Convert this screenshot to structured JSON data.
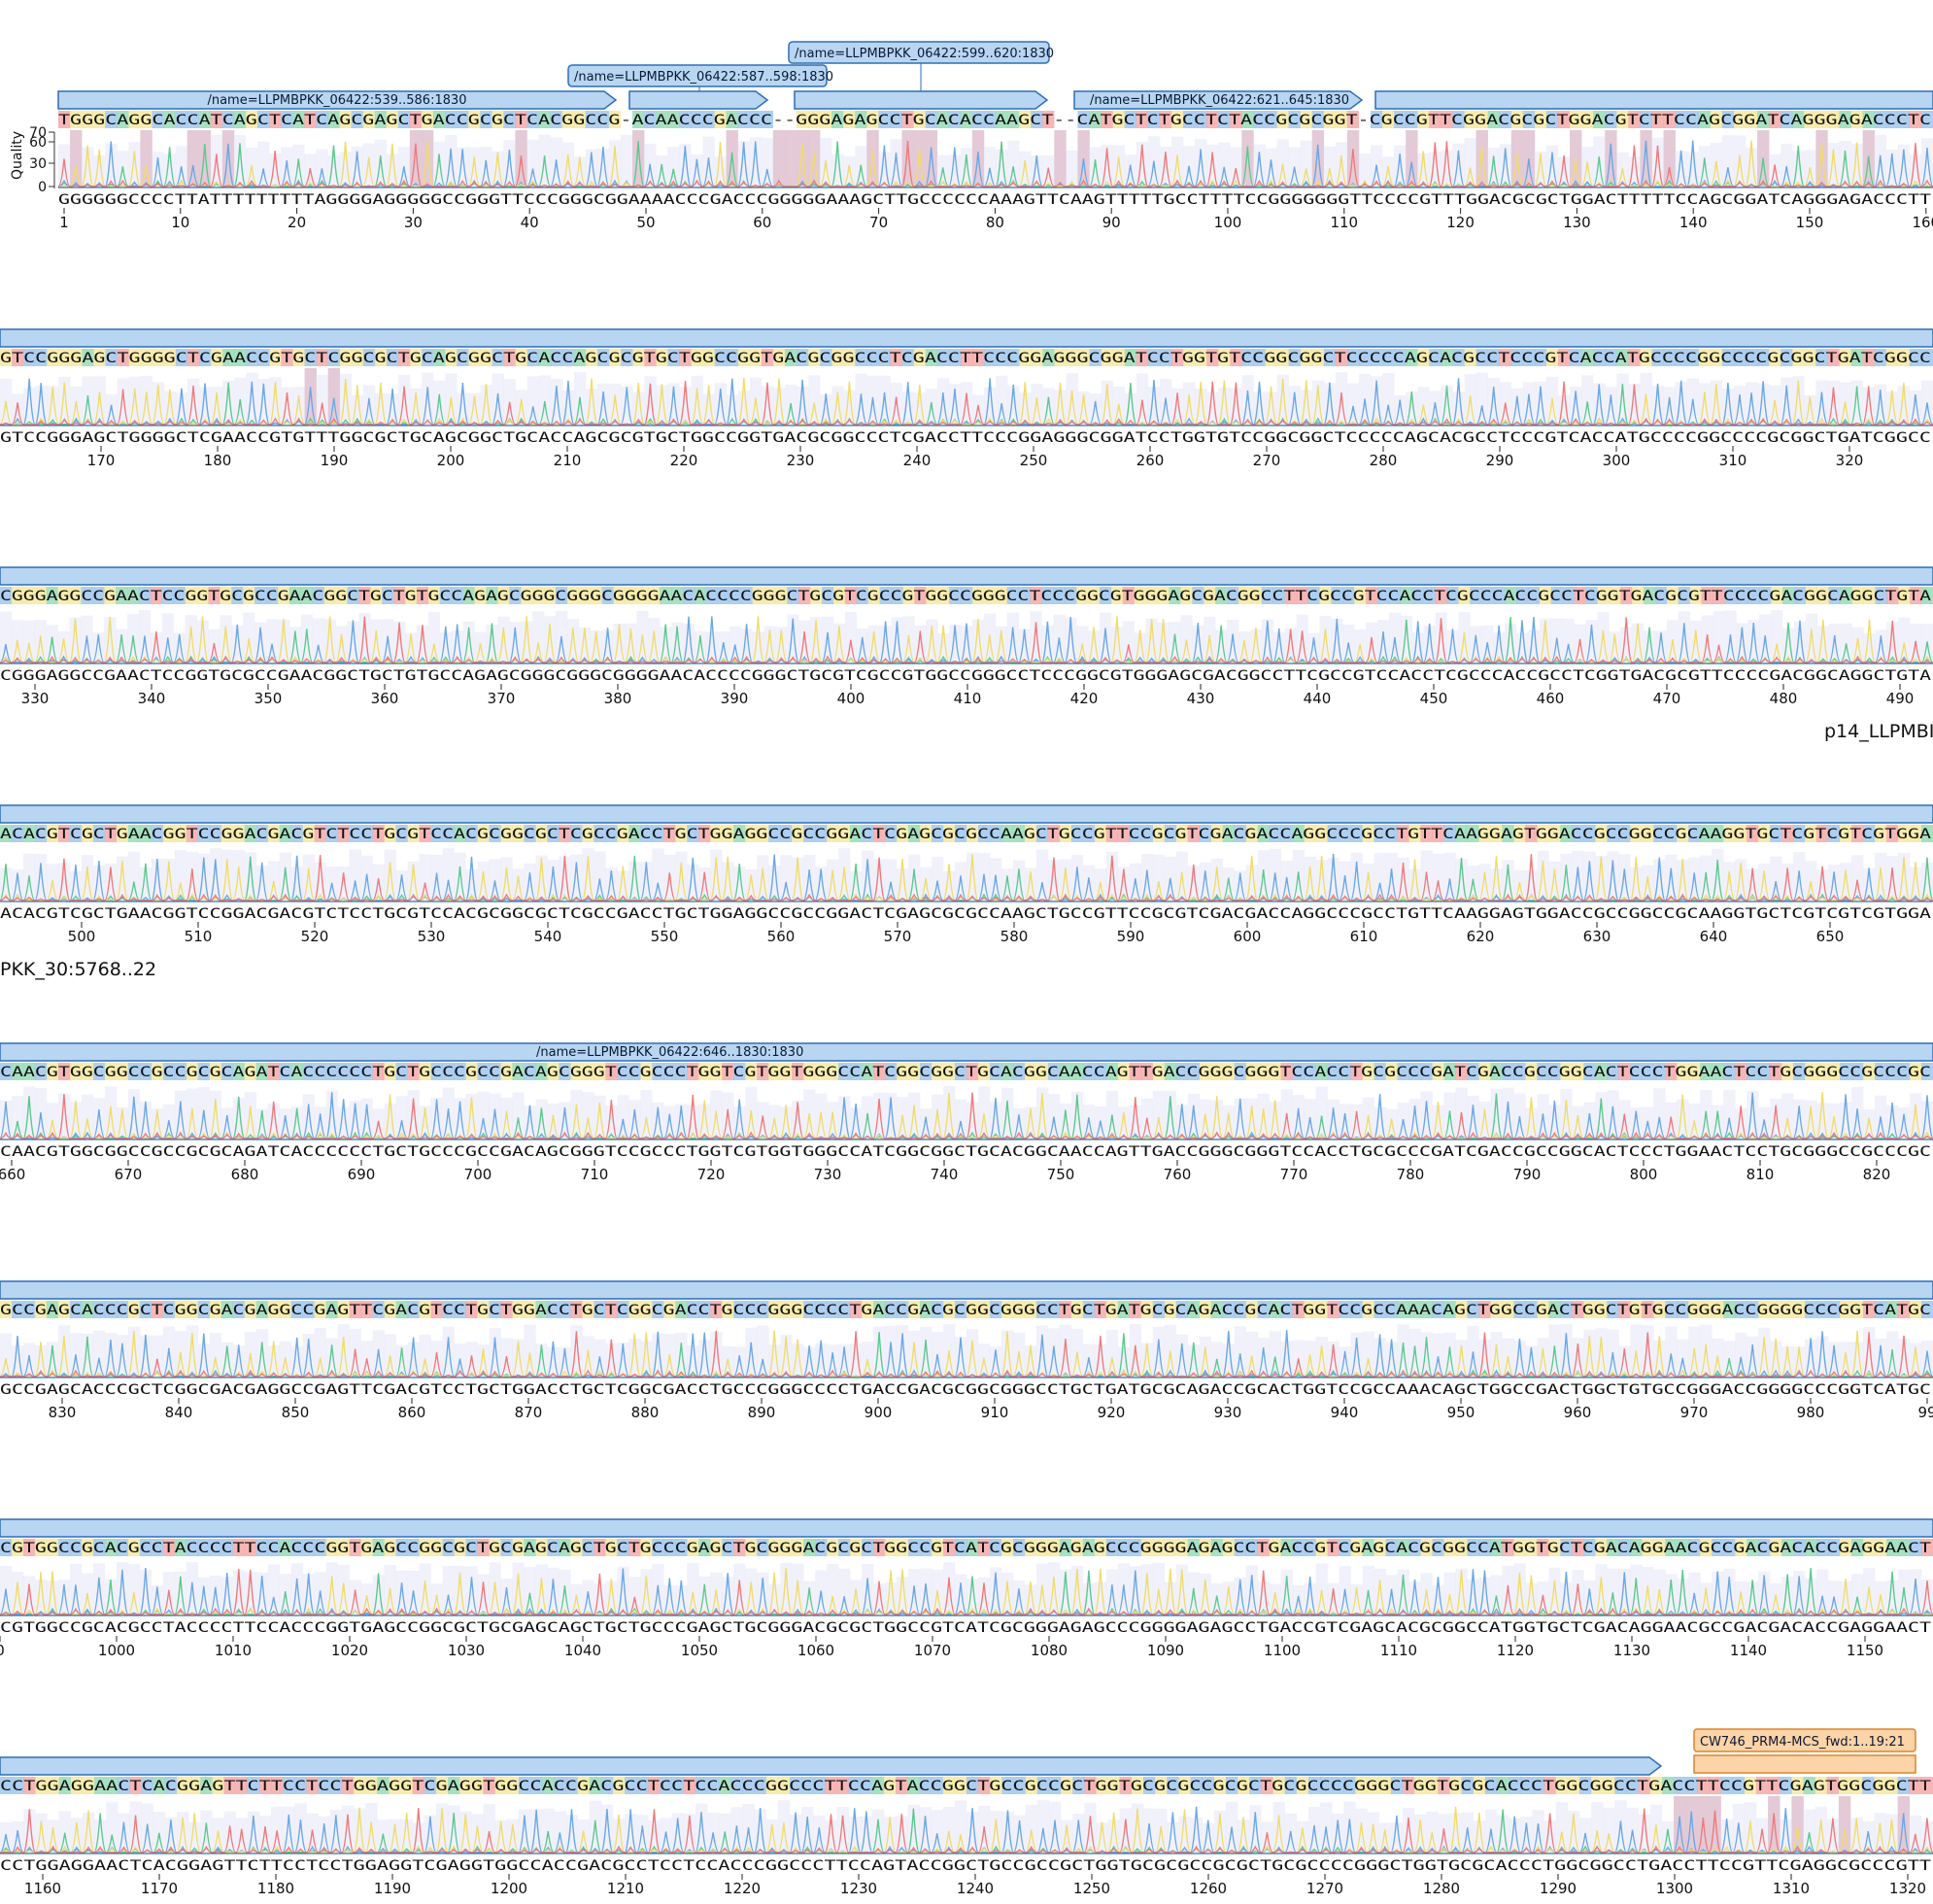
{
  "quality_axis": {
    "title": "Quality",
    "ticks": [
      "60",
      "30",
      "0"
    ],
    "top_tick": "70"
  },
  "colors": {
    "annotation_fill": "#b8d6f2",
    "annotation_stroke": "#2f6fb5",
    "primer_fill": "#fdd3a8",
    "primer_stroke": "#d9862a",
    "low_quality": "#e0c4d2",
    "quality_bar": "#e6e6f7",
    "A": "#5cc98e",
    "C": "#6aa8e6",
    "G": "#f0dc6a",
    "T": "#f07a7a"
  },
  "rows": [
    {
      "ruler": [
        "1",
        "10",
        "20",
        "30",
        "40",
        "50",
        "60",
        "70",
        "80",
        "90",
        "100",
        "110",
        "120",
        "130",
        "140",
        "150",
        "160"
      ],
      "consensus": "TGGGCAGGCACCATCAGCTCATCAGCGAGCTGACCGCGCTCACGGCCG-ACAACCCGACCC--GGGAGAGCCTGCACACCAAGCT--CATGCTCTGCCTCTACCGCGCGGT-CGCCGTTCGGACGCGCTGGACGTCTTCCAGCGGATCAGGGAGACCCTC",
      "read": "GGGGGGCCCCTTATTTTTTTTTAGGGGAGGGGGCCGGGTTCCCGGGCGGAAAACCCGACCCGGGGGAAAGCTTGCCCCCCAAAGTTCAAGTTTTTGCCTTTTCCGGGGGGGTTCCCCGTTTGGACGCGCTGGACTTTTTCCAGCGGATCAGGGAGACCCTT",
      "annotations": [
        {
          "label": "/name=LLPMBPKK_06422:539..586:1830"
        },
        {
          "label": ""
        },
        {
          "label": ""
        },
        {
          "label": "/name=LLPMBPKK_06422:621..645:1830"
        },
        {
          "label": ""
        }
      ],
      "callouts": [
        {
          "label": "/name=LLPMBPKK_06422:587..598:1830"
        },
        {
          "label": "/name=LLPMBPKK_06422:599..620:1830"
        }
      ]
    },
    {
      "ruler": [
        "170",
        "180",
        "190",
        "200",
        "210",
        "220",
        "230",
        "240",
        "250",
        "260",
        "270",
        "280",
        "290",
        "300",
        "310",
        "320"
      ],
      "consensus": "GTCCGGGAGCTGGGGCTCGAACCGTGCTCGGCGCTGCAGCGGCTGCACCAGCGCGTGCTGGCCGGTGACGCGGCCCTCGACCTTCCCGGAGGGCGGATCCTGGTGTCCGGCGGCTCCCCCAGCACGCCTCCCGTCACCATGCCCCGGCCCCGCGGCTGATCGGCC",
      "read": "GTCCGGGAGCTGGGGCTCGAACCGTGTTTGGCGCTGCAGCGGCTGCACCAGCGCGTGCTGGCCGGTGACGCGGCCCTCGACCTTCCCGGAGGGCGGATCCTGGTGTCCGGCGGCTCCCCCAGCACGCCTCCCGTCACCATGCCCCGGCCCCGCGGCTGATCGGCC",
      "annotations": [
        {
          "label": ""
        }
      ]
    },
    {
      "ruler": [
        "330",
        "340",
        "350",
        "360",
        "370",
        "380",
        "390",
        "400",
        "410",
        "420",
        "430",
        "440",
        "450",
        "460",
        "470",
        "480",
        "490"
      ],
      "consensus": "CGGGAGGCCGAACTCCGGTGCGCCGAACGGCTGCTGTGCCAGAGCGGGCGGGCGGGGAACACCCCGGGCTGCGTCGCCGTGGCCGGGCCTCCCGGCGTGGGAGCGACGGCCTTCGCCGTCCACCTCGCCCACCGCCTCGGTGACGCGTTCCCCGACGGCAGGCTGTA",
      "read": "CGGGAGGCCGAACTCCGGTGCGCCGAACGGCTGCTGTGCCAGAGCGGGCGGGCGGGGAACACCCCGGGCTGCGTCGCCGTGGCCGGGCCTCCCGGCGTGGGAGCGACGGCCTTCGCCGTCCACCTCGCCCACCGCCTCGGTGACGCGTTCCCCGACGGCAGGCTGTA",
      "annotations": [
        {
          "label": ""
        }
      ],
      "trailing_label": "p14_LLPMBI"
    },
    {
      "ruler": [
        "500",
        "510",
        "520",
        "530",
        "540",
        "550",
        "560",
        "570",
        "580",
        "590",
        "600",
        "610",
        "620",
        "630",
        "640",
        "650"
      ],
      "consensus": "ACACGTCGCTGAACGGTCCGGACGACGTCTCCTGCGTCCACGCGGCGCTCGCCGACCTGCTGGAGGCCGCCGGACTCGAGCGCGCCAAGCTGCCGTTCCGCGTCGACGACCAGGCCCGCCTGTTCAAGGAGTGGACCGCCGGCCGCAAGGTGCTCGTCGTCGTGGA",
      "read": "ACACGTCGCTGAACGGTCCGGACGACGTCTCCTGCGTCCACGCGGCGCTCGCCGACCTGCTGGAGGCCGCCGGACTCGAGCGCGCCAAGCTGCCGTTCCGCGTCGACGACCAGGCCCGCCTGTTCAAGGAGTGGACCGCCGGCCGCAAGGTGCTCGTCGTCGTGGA",
      "annotations": [
        {
          "label": ""
        }
      ],
      "leading_label": "PKK_30:5768..22"
    },
    {
      "ruler": [
        "660",
        "670",
        "680",
        "690",
        "700",
        "710",
        "720",
        "730",
        "740",
        "750",
        "760",
        "770",
        "780",
        "790",
        "800",
        "810",
        "820"
      ],
      "consensus": "CAACGTGGCGGCCGCCGCGCAGATCACCCCCCTGCTGCCCGCCGACAGCGGGTCCGCCCTGGTCGTGGTGGGCCATCGGCGGCTGCACGGCAACCAGTTGACCGGGCGGGTCCACCTGCGCCCGATCGACCGCCGGCACTCCCTGGAACTCCTGCGGGCCGCCCGC",
      "read": "CAACGTGGCGGCCGCCGCGCAGATCACCCCCCTGCTGCCCGCCGACAGCGGGTCCGCCCTGGTCGTGGTGGGCCATCGGCGGCTGCACGGCAACCAGTTGACCGGGCGGGTCCACCTGCGCCCGATCGACCGCCGGCACTCCCTGGAACTCCTGCGGGCCGCCCGC",
      "annotations": [
        {
          "label": "/name=LLPMBPKK_06422:646..1830:1830"
        }
      ]
    },
    {
      "ruler": [
        "830",
        "840",
        "850",
        "860",
        "870",
        "880",
        "890",
        "900",
        "910",
        "920",
        "930",
        "940",
        "950",
        "960",
        "970",
        "980",
        "99"
      ],
      "consensus": "GCCGAGCACCCGCTCGGCGACGAGGCCGAGTTCGACGTCCTGCTGGACCTGCTCGGCGACCTGCCCGGGCCCCTGACCGACGCGGCGGGCCTGCTGATGCGCAGACCGCACTGGTCCGCCAAACAGCTGGCCGACTGGCTGTGCCGGGACCGGGGCCCGGTCATGC",
      "read": "GCCGAGCACCCGCTCGGCGACGAGGCCGAGTTCGACGTCCTGCTGGACCTGCTCGGCGACCTGCCCGGGCCCCTGACCGACGCGGCGGGCCTGCTGATGCGCAGACCGCACTGGTCCGCCAAACAGCTGGCCGACTGGCTGTGCCGGGACCGGGGCCCGGTCATGC",
      "annotations": [
        {
          "label": ""
        }
      ]
    },
    {
      "ruler": [
        "0",
        "1000",
        "1010",
        "1020",
        "1030",
        "1040",
        "1050",
        "1060",
        "1070",
        "1080",
        "1090",
        "1100",
        "1110",
        "1120",
        "1130",
        "1140",
        "1150"
      ],
      "consensus": "CGTGGCCGCACGCCTACCCCTTCCACCCGGTGAGCCGGCGCTGCGAGCAGCTGCTGCCCGAGCTGCGGGACGCGCTGGCCGTCATCGCGGGAGAGCCCGGGGAGAGCCTGACCGTCGAGCACGCGGCCATGGTGCTCGACAGGAACGCCGACGACACCGAGGAACT",
      "read": "CGTGGCCGCACGCCTACCCCTTCCACCCGGTGAGCCGGCGCTGCGAGCAGCTGCTGCCCGAGCTGCGGGACGCGCTGGCCGTCATCGCGGGAGAGCCCGGGGAGAGCCTGACCGTCGAGCACGCGGCCATGGTGCTCGACAGGAACGCCGACGACACCGAGGAACT",
      "annotations": [
        {
          "label": ""
        }
      ]
    },
    {
      "ruler": [
        "1160",
        "1170",
        "1180",
        "1190",
        "1200",
        "1210",
        "1220",
        "1230",
        "1240",
        "1250",
        "1260",
        "1270",
        "1280",
        "1290",
        "1300",
        "1310",
        "1320"
      ],
      "consensus": "CCTGGAGGAACTCACGGAGTTCTTCCTCCTGGAGGTCGAGGTGGCCACCGACGCCTCCTCCACCCGGCCCTTCCAGTACCGGCTGCCGCCGCTGGTGCGCGCCGCGCTGCGCCCCGGGCTGGTGCGCACCCTGGCGGCCTGACCTTCCGTTCGAGTGGCGGCTT",
      "read": "CCTGGAGGAACTCACGGAGTTCTTCCTCCTGGAGGTCGAGGTGGCCACCGACGCCTCCTCCACCCGGCCCTTCCAGTACCGGCTGCCGCCGCTGGTGCGCGCCGCGCTGCGCCCCGGGCTGGTGCGCACCCTGGCGGCCTGACCTTCCGTTCGAGGCGCCCGTT",
      "annotations": [
        {
          "label": ""
        }
      ],
      "primer": {
        "label": "CW746_PRM4-MCS_fwd:1..19:21"
      }
    }
  ]
}
